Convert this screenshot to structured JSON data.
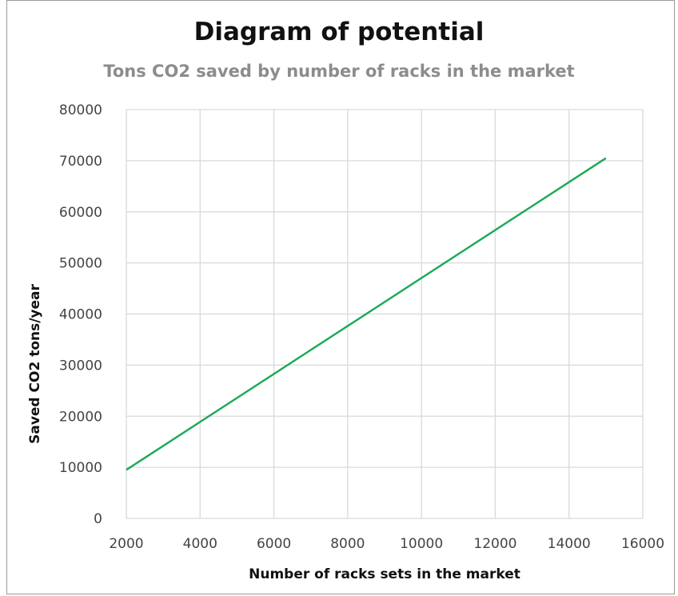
{
  "chart_data": {
    "type": "line",
    "title": "Diagram of potential",
    "subtitle": "Tons CO2 saved by number of racks in the market",
    "xlabel": "Number of racks sets in the market",
    "ylabel": "Saved CO2 tons/year",
    "xlim": [
      2000,
      16000
    ],
    "ylim": [
      0,
      80000
    ],
    "xticks": [
      2000,
      4000,
      6000,
      8000,
      10000,
      12000,
      14000,
      16000
    ],
    "yticks": [
      0,
      10000,
      20000,
      30000,
      40000,
      50000,
      60000,
      70000,
      80000
    ],
    "grid": true,
    "legend": "none",
    "series": [
      {
        "x": [
          2000,
          15000
        ],
        "y": [
          9500,
          70500
        ],
        "color": "#1aaa55"
      }
    ]
  }
}
